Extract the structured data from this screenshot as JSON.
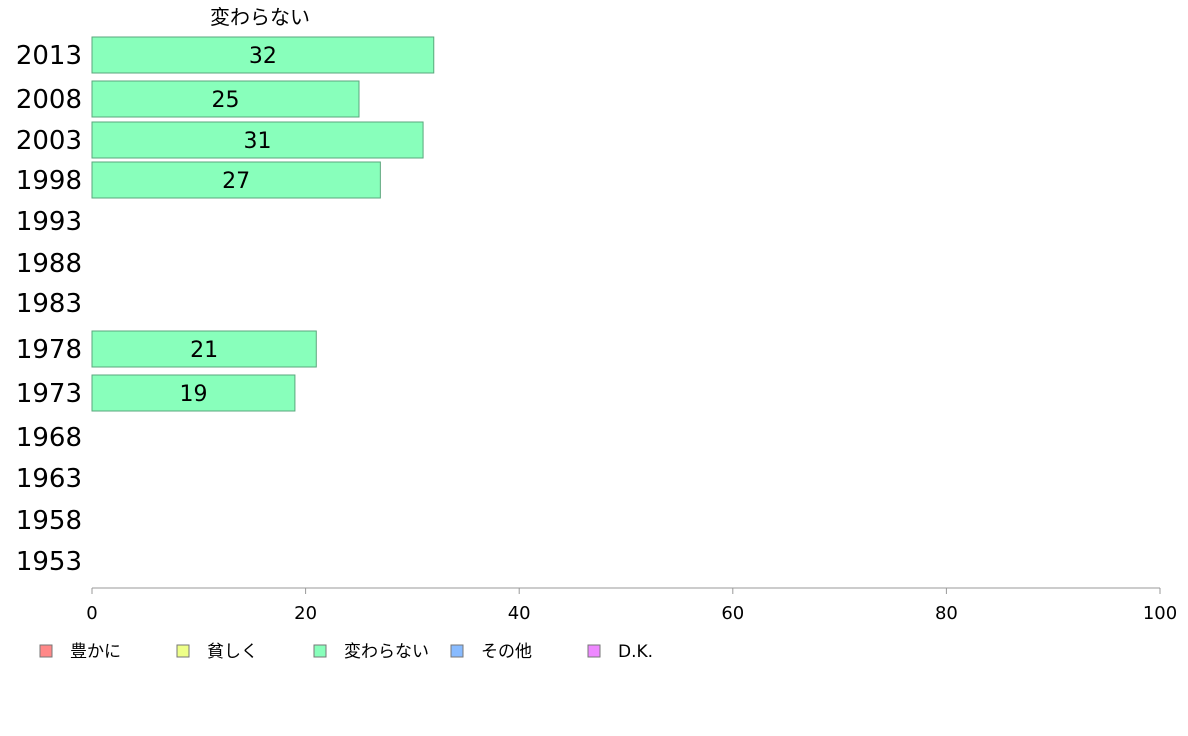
{
  "chart_data": {
    "type": "bar",
    "orientation": "horizontal",
    "title": "変わらない",
    "categories": [
      "2013",
      "2008",
      "2003",
      "1998",
      "1993",
      "1988",
      "1983",
      "1978",
      "1973",
      "1968",
      "1963",
      "1958",
      "1953"
    ],
    "series": [
      {
        "name": "変わらない",
        "color": "#88ffbb",
        "values": [
          32,
          25,
          31,
          27,
          null,
          null,
          null,
          21,
          19,
          null,
          null,
          null,
          null
        ]
      }
    ],
    "xlim": [
      0,
      100
    ],
    "xticks": [
      0,
      20,
      40,
      60,
      80,
      100
    ],
    "grid": false,
    "legend_position": "bottom-left",
    "legend": [
      {
        "label": "豊かに",
        "color": "#ff8888"
      },
      {
        "label": "貧しく",
        "color": "#eeff88"
      },
      {
        "label": "変わらない",
        "color": "#88ffbb"
      },
      {
        "label": "その他",
        "color": "#88bbff"
      },
      {
        "label": "D.K.",
        "color": "#ee88ff"
      }
    ]
  }
}
